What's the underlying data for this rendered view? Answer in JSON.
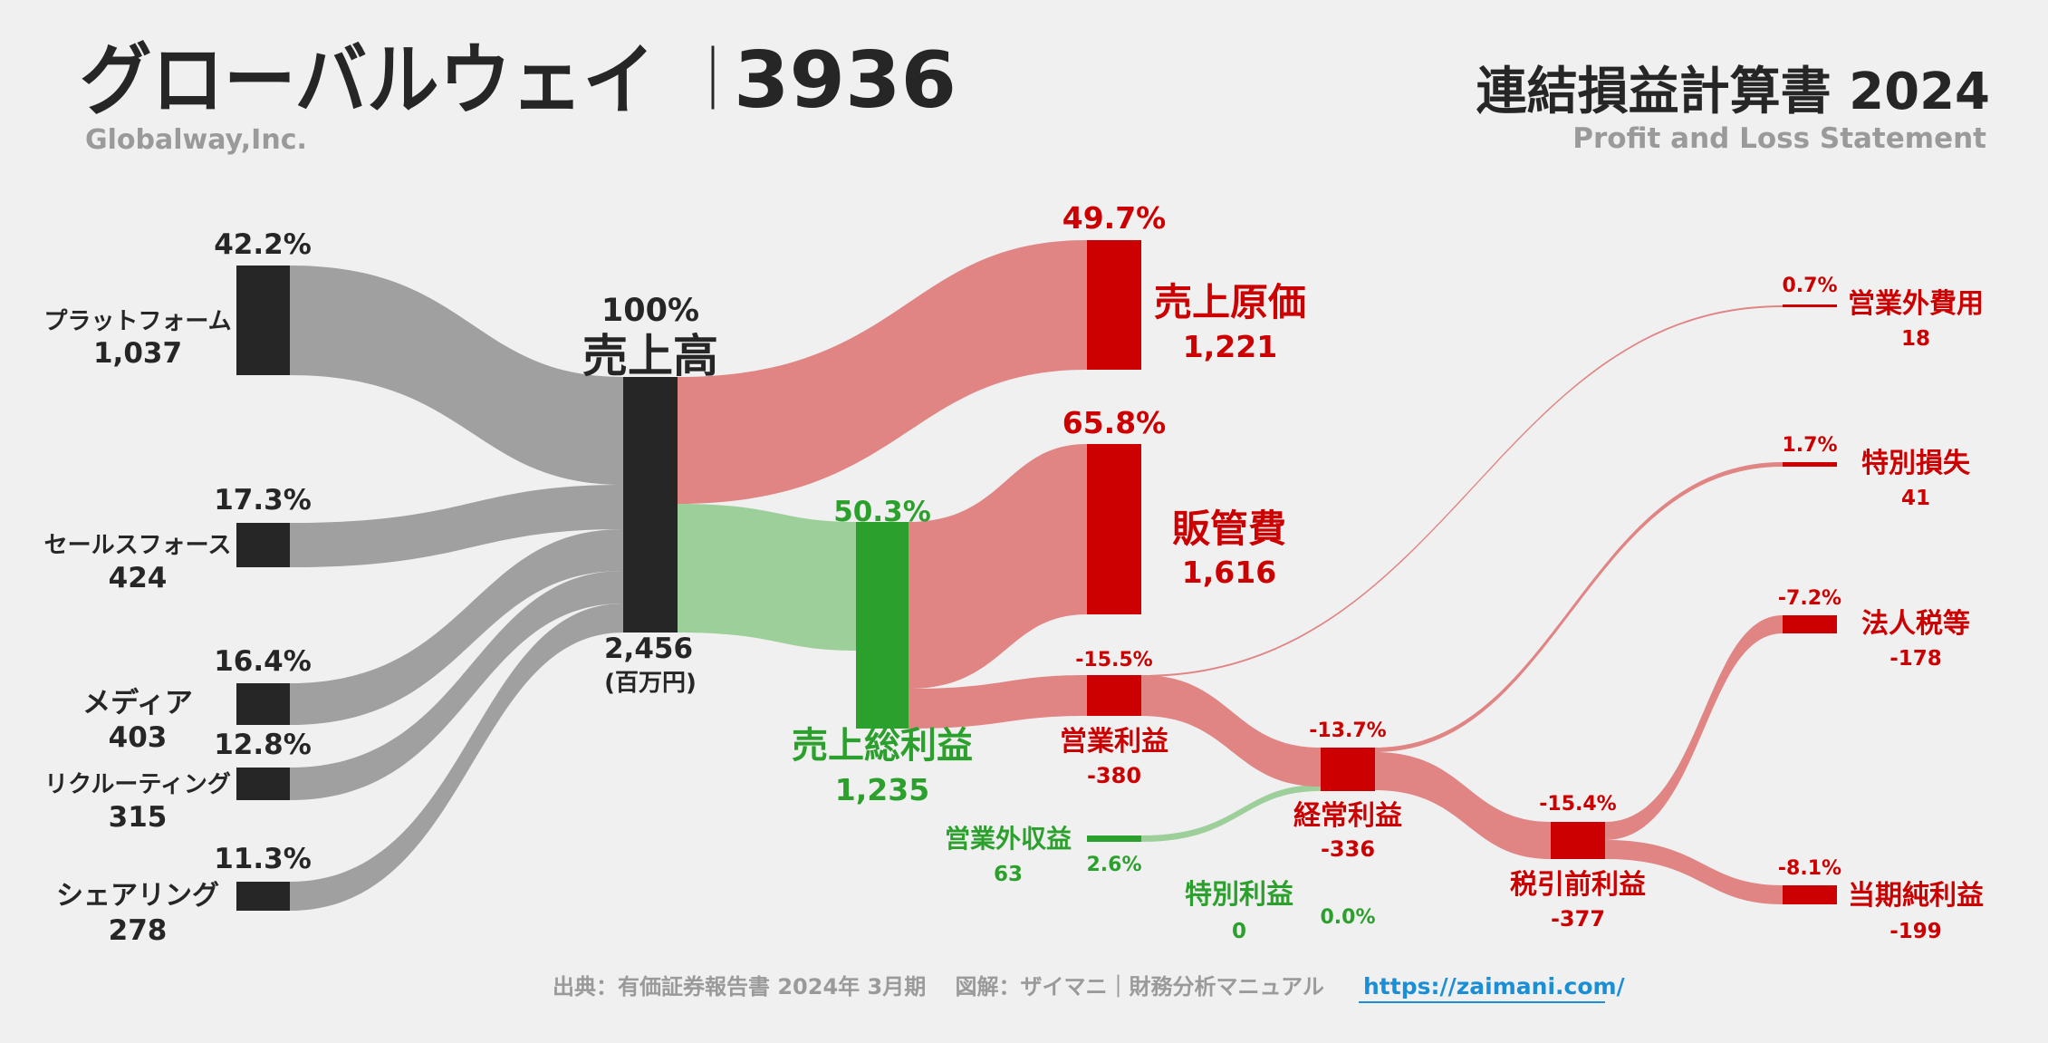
{
  "header": {
    "company_jp": "グローバルウェイ",
    "separator": "｜",
    "code": "3936",
    "company_en": "Globalway,Inc.",
    "title_jp": "連結損益計算書 2024",
    "title_en": "Profit and Loss Statement"
  },
  "footer": {
    "source": "出典：有価証券報告書 2024年 3月期　 図解：ザイマニ｜財務分析マニュアル",
    "url": "https://zaimani.com/"
  },
  "colors": {
    "dark": "#262626",
    "gray_flow": "#a0a0a0",
    "red": "#cc0000",
    "red_flow": "#e08484",
    "green": "#2ca02c",
    "green_flow": "#9ccf9a"
  },
  "chart_data": {
    "type": "sankey",
    "unit": "百万円",
    "segments": [
      {
        "name": "プラットフォーム",
        "value": "1,037",
        "pct": "42.2%"
      },
      {
        "name": "セールスフォース",
        "value": "424",
        "pct": "17.3%"
      },
      {
        "name": "メディア",
        "value": "403",
        "pct": "16.4%"
      },
      {
        "name": "リクルーティング",
        "value": "315",
        "pct": "12.8%"
      },
      {
        "name": "シェアリング",
        "value": "278",
        "pct": "11.3%"
      }
    ],
    "revenue": {
      "name": "売上高",
      "value": "2,456",
      "pct": "100%",
      "unit_label": "(百万円)"
    },
    "cogs": {
      "name": "売上原価",
      "value": "1,221",
      "pct": "49.7%"
    },
    "gross_profit": {
      "name": "売上総利益",
      "value": "1,235",
      "pct": "50.3%"
    },
    "sga": {
      "name": "販管費",
      "value": "1,616",
      "pct": "65.8%"
    },
    "operating_profit": {
      "name": "営業利益",
      "value": "-380",
      "pct": "-15.5%"
    },
    "non_op_income": {
      "name": "営業外収益",
      "value": "63",
      "pct": "2.6%"
    },
    "non_op_expense": {
      "name": "営業外費用",
      "value": "18",
      "pct": "0.7%"
    },
    "ordinary_profit": {
      "name": "経常利益",
      "value": "-336",
      "pct": "-13.7%"
    },
    "extraordinary_income": {
      "name": "特別利益",
      "value": "0",
      "pct": "0.0%"
    },
    "extraordinary_loss": {
      "name": "特別損失",
      "value": "41",
      "pct": "1.7%"
    },
    "pretax_profit": {
      "name": "税引前利益",
      "value": "-377",
      "pct": "-15.4%"
    },
    "taxes": {
      "name": "法人税等",
      "value": "-178",
      "pct": "-7.2%"
    },
    "net_profit": {
      "name": "当期純利益",
      "value": "-199",
      "pct": "-8.1%"
    }
  }
}
